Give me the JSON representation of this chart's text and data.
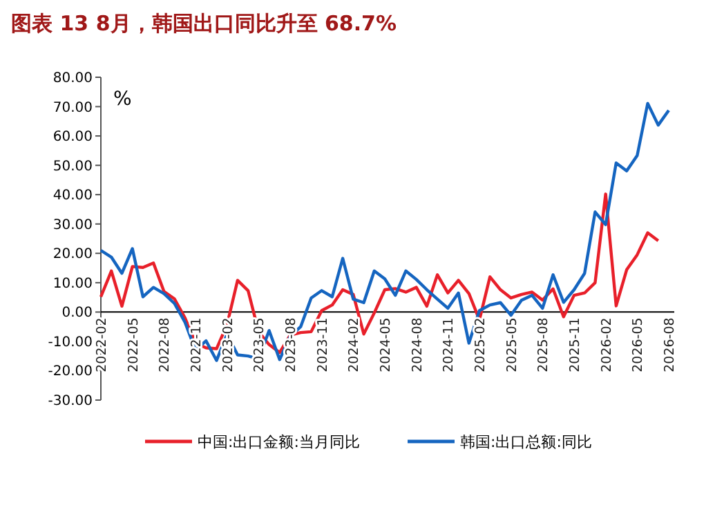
{
  "chart_data": {
    "type": "line",
    "title": "图表 13    8月，韩国出口同比升至 68.7%",
    "ylabel": "%",
    "categories": [
      "2022-02",
      null,
      null,
      "2022-05",
      null,
      null,
      "2022-08",
      null,
      null,
      "2022-11",
      null,
      null,
      "2023-02",
      null,
      null,
      "2023-05",
      null,
      null,
      "2023-08",
      null,
      null,
      "2023-11",
      null,
      null,
      "2024-02",
      null,
      null,
      "2024-05",
      null,
      null,
      "2024-08",
      null,
      null,
      "2024-11",
      null,
      null,
      "2025-02",
      null,
      null,
      "2025-05",
      null,
      null,
      "2025-08",
      null,
      null,
      "2025-11",
      null,
      null,
      "2026-02",
      null,
      null,
      "2026-05",
      null,
      null,
      "2026-08"
    ],
    "series": [
      {
        "name": "中国:出口金额:当月同比",
        "color": "#e8202a",
        "values": [
          5.2,
          14,
          2,
          15.5,
          15.2,
          16.7,
          7,
          4.5,
          -2,
          -10.6,
          -12.2,
          -12.5,
          -4.3,
          10.8,
          7.3,
          -6.7,
          -11.1,
          -13.8,
          -7.9,
          -7,
          -6.7,
          0.5,
          2.4,
          7.6,
          6,
          -7.5,
          -0.3,
          7.6,
          8,
          6.8,
          8.4,
          2,
          12.7,
          6.5,
          10.8,
          6.3,
          -2.7,
          12,
          7.6,
          4.8,
          6,
          6.8,
          4.1,
          7.9,
          -1.6,
          5.7,
          6.5,
          10,
          40.2,
          2.1,
          14.4,
          19.5,
          27,
          24.3,
          null
        ]
      },
      {
        "name": "韩国:出口总额:同比",
        "color": "#1565c0",
        "values": [
          21,
          18.7,
          13.2,
          21.6,
          5.2,
          8.4,
          6.3,
          2.9,
          -3.5,
          -13,
          -9.8,
          -16.5,
          -7.5,
          -14.6,
          -15,
          -15.9,
          -6.3,
          -16.2,
          -8.3,
          -5,
          4.8,
          7.3,
          5.2,
          18.3,
          4.4,
          3.2,
          14,
          11.3,
          5.7,
          14,
          11.1,
          7.6,
          4.4,
          1.3,
          6.5,
          -10.6,
          0.5,
          2.4,
          3.2,
          -1.1,
          4,
          5.7,
          1.3,
          12.7,
          3.3,
          7.6,
          13.2,
          34.1,
          29.8,
          50.8,
          48.1,
          53.3,
          71.1,
          63.7,
          68.7
        ]
      }
    ],
    "ylim": [
      -30,
      80
    ],
    "yticks": [
      {
        "value": -30,
        "label": "-30.00"
      },
      {
        "value": -20,
        "label": "-20.00"
      },
      {
        "value": -10,
        "label": "-10.00"
      },
      {
        "value": 0,
        "label": "0.00"
      },
      {
        "value": 10,
        "label": "10.00"
      },
      {
        "value": 20,
        "label": "20.00"
      },
      {
        "value": 30,
        "label": "30.00"
      },
      {
        "value": 40,
        "label": "40.00"
      },
      {
        "value": 50,
        "label": "50.00"
      },
      {
        "value": 60,
        "label": "60.00"
      },
      {
        "value": 70,
        "label": "70.00"
      },
      {
        "value": 80,
        "label": "80.00"
      }
    ],
    "grid": false,
    "legend": "bottom",
    "marker": "none",
    "line_style": "solid"
  }
}
